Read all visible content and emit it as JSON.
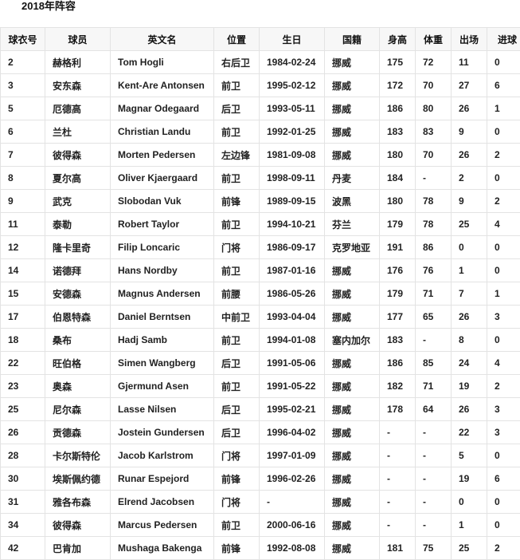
{
  "title": "2018年阵容",
  "headers": [
    "球衣号",
    "球员",
    "英文名",
    "位置",
    "生日",
    "国籍",
    "身高",
    "体重",
    "出场",
    "进球"
  ],
  "rows": [
    [
      "2",
      "赫格利",
      "Tom Hogli",
      "右后卫",
      "1984-02-24",
      "挪威",
      "175",
      "72",
      "11",
      "0"
    ],
    [
      "3",
      "安东森",
      "Kent-Are Antonsen",
      "前卫",
      "1995-02-12",
      "挪威",
      "172",
      "70",
      "27",
      "6"
    ],
    [
      "5",
      "厄德高",
      "Magnar Odegaard",
      "后卫",
      "1993-05-11",
      "挪威",
      "186",
      "80",
      "26",
      "1"
    ],
    [
      "6",
      "兰杜",
      "Christian Landu",
      "前卫",
      "1992-01-25",
      "挪威",
      "183",
      "83",
      "9",
      "0"
    ],
    [
      "7",
      "彼得森",
      "Morten Pedersen",
      "左边锋",
      "1981-09-08",
      "挪威",
      "180",
      "70",
      "26",
      "2"
    ],
    [
      "8",
      "夏尔高",
      "Oliver Kjaergaard",
      "前卫",
      "1998-09-11",
      "丹麦",
      "184",
      "-",
      "2",
      "0"
    ],
    [
      "9",
      "武克",
      "Slobodan Vuk",
      "前锋",
      "1989-09-15",
      "波黑",
      "180",
      "78",
      "9",
      "2"
    ],
    [
      "11",
      "泰勒",
      "Robert Taylor",
      "前卫",
      "1994-10-21",
      "芬兰",
      "179",
      "78",
      "25",
      "4"
    ],
    [
      "12",
      "隆卡里奇",
      "Filip Loncaric",
      "门将",
      "1986-09-17",
      "克罗地亚",
      "191",
      "86",
      "0",
      "0"
    ],
    [
      "14",
      "诺德拜",
      "Hans Nordby",
      "前卫",
      "1987-01-16",
      "挪威",
      "176",
      "76",
      "1",
      "0"
    ],
    [
      "15",
      "安德森",
      "Magnus Andersen",
      "前腰",
      "1986-05-26",
      "挪威",
      "179",
      "71",
      "7",
      "1"
    ],
    [
      "17",
      "伯恩特森",
      "Daniel Berntsen",
      "中前卫",
      "1993-04-04",
      "挪威",
      "177",
      "65",
      "26",
      "3"
    ],
    [
      "18",
      "桑布",
      "Hadj Samb",
      "前卫",
      "1994-01-08",
      "塞内加尔",
      "183",
      "-",
      "8",
      "0"
    ],
    [
      "22",
      "旺伯格",
      "Simen Wangberg",
      "后卫",
      "1991-05-06",
      "挪威",
      "186",
      "85",
      "24",
      "4"
    ],
    [
      "23",
      "奥森",
      "Gjermund Asen",
      "前卫",
      "1991-05-22",
      "挪威",
      "182",
      "71",
      "19",
      "2"
    ],
    [
      "25",
      "尼尔森",
      "Lasse Nilsen",
      "后卫",
      "1995-02-21",
      "挪威",
      "178",
      "64",
      "26",
      "3"
    ],
    [
      "26",
      "贡德森",
      "Jostein Gundersen",
      "后卫",
      "1996-04-02",
      "挪威",
      "-",
      "-",
      "22",
      "3"
    ],
    [
      "28",
      "卡尔斯特伦",
      "Jacob Karlstrom",
      "门将",
      "1997-01-09",
      "挪威",
      "-",
      "-",
      "5",
      "0"
    ],
    [
      "30",
      "埃斯佩约德",
      "Runar Espejord",
      "前锋",
      "1996-02-26",
      "挪威",
      "-",
      "-",
      "19",
      "6"
    ],
    [
      "31",
      "雅各布森",
      "Elrend Jacobsen",
      "门将",
      "-",
      "挪威",
      "-",
      "-",
      "0",
      "0"
    ],
    [
      "34",
      "彼得森",
      "Marcus Pedersen",
      "前卫",
      "2000-06-16",
      "挪威",
      "-",
      "-",
      "1",
      "0"
    ],
    [
      "42",
      "巴肯加",
      "Mushaga Bakenga",
      "前锋",
      "1992-08-08",
      "挪威",
      "181",
      "75",
      "25",
      "2"
    ]
  ]
}
